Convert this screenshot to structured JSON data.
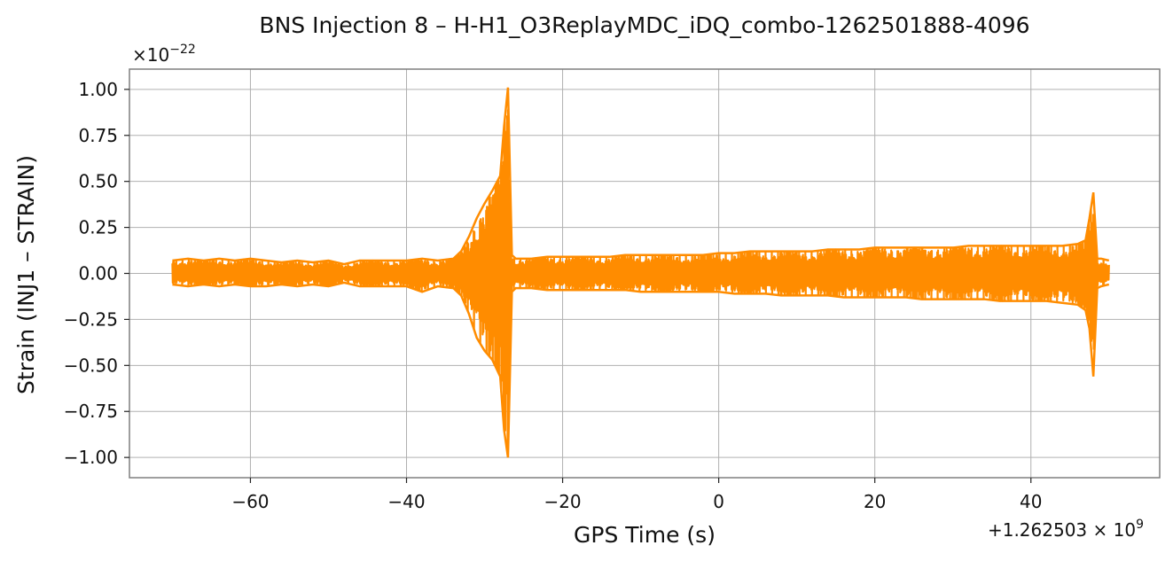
{
  "chart_data": {
    "type": "line",
    "title": "BNS Injection 8 – H-H1_O3ReplayMDC_iDQ_combo-1262501888-4096",
    "xlabel": "GPS Time (s)",
    "ylabel": "Strain (INJ1 – STRAIN)",
    "x_offset_label": "+1.262503 × 10",
    "x_offset_exponent": "9",
    "y_multiplier_label": "×10",
    "y_multiplier_exponent": "−22",
    "xlim": [
      -75.5,
      56.5
    ],
    "ylim": [
      -1.11,
      1.11
    ],
    "xticks": [
      -60,
      -40,
      -20,
      0,
      20,
      40
    ],
    "xtick_labels": [
      "−60",
      "−40",
      "−20",
      "0",
      "20",
      "40"
    ],
    "yticks": [
      -1.0,
      -0.75,
      -0.5,
      -0.25,
      0.0,
      0.25,
      0.5,
      0.75,
      1.0
    ],
    "ytick_labels": [
      "−1.00",
      "−0.75",
      "−0.50",
      "−0.25",
      "0.00",
      "0.25",
      "0.50",
      "0.75",
      "1.00"
    ],
    "grid": true,
    "color": "#ff8c00",
    "series": [
      {
        "x": [
          -70,
          -68,
          -66,
          -64,
          -62,
          -60,
          -58,
          -56,
          -54,
          -52,
          -50,
          -48,
          -46,
          -44,
          -42,
          -40,
          -38,
          -36,
          -34,
          -33,
          -32,
          -31,
          -30,
          -29,
          -28,
          -27.5,
          -27,
          -26.5,
          -26,
          -24,
          -22,
          -20,
          -18,
          -16,
          -14,
          -12,
          -10,
          -8,
          -6,
          -4,
          -2,
          0,
          2,
          4,
          6,
          8,
          10,
          12,
          14,
          16,
          18,
          20,
          22,
          24,
          26,
          28,
          30,
          32,
          34,
          36,
          38,
          40,
          42,
          44,
          46,
          47,
          47.5,
          48,
          48.5,
          49,
          50
        ],
        "upper": [
          0.07,
          0.08,
          0.07,
          0.08,
          0.07,
          0.08,
          0.07,
          0.06,
          0.07,
          0.06,
          0.07,
          0.05,
          0.07,
          0.07,
          0.07,
          0.07,
          0.08,
          0.07,
          0.08,
          0.12,
          0.2,
          0.3,
          0.38,
          0.45,
          0.53,
          0.8,
          1.01,
          0.1,
          0.08,
          0.08,
          0.09,
          0.09,
          0.09,
          0.09,
          0.09,
          0.1,
          0.1,
          0.1,
          0.1,
          0.1,
          0.1,
          0.11,
          0.11,
          0.12,
          0.12,
          0.12,
          0.12,
          0.12,
          0.13,
          0.13,
          0.13,
          0.14,
          0.14,
          0.14,
          0.14,
          0.14,
          0.14,
          0.15,
          0.15,
          0.15,
          0.15,
          0.15,
          0.15,
          0.15,
          0.16,
          0.18,
          0.3,
          0.44,
          0.08,
          0.08,
          0.07
        ],
        "lower": [
          -0.06,
          -0.07,
          -0.06,
          -0.07,
          -0.06,
          -0.07,
          -0.07,
          -0.06,
          -0.07,
          -0.06,
          -0.07,
          -0.05,
          -0.07,
          -0.07,
          -0.07,
          -0.07,
          -0.1,
          -0.07,
          -0.08,
          -0.12,
          -0.22,
          -0.35,
          -0.42,
          -0.47,
          -0.56,
          -0.85,
          -1.0,
          -0.1,
          -0.08,
          -0.08,
          -0.09,
          -0.09,
          -0.09,
          -0.09,
          -0.09,
          -0.09,
          -0.1,
          -0.1,
          -0.1,
          -0.1,
          -0.1,
          -0.1,
          -0.11,
          -0.11,
          -0.11,
          -0.12,
          -0.12,
          -0.12,
          -0.12,
          -0.13,
          -0.13,
          -0.13,
          -0.13,
          -0.13,
          -0.14,
          -0.14,
          -0.14,
          -0.14,
          -0.14,
          -0.15,
          -0.15,
          -0.15,
          -0.15,
          -0.16,
          -0.17,
          -0.2,
          -0.3,
          -0.56,
          -0.08,
          -0.07,
          -0.06
        ]
      }
    ]
  }
}
